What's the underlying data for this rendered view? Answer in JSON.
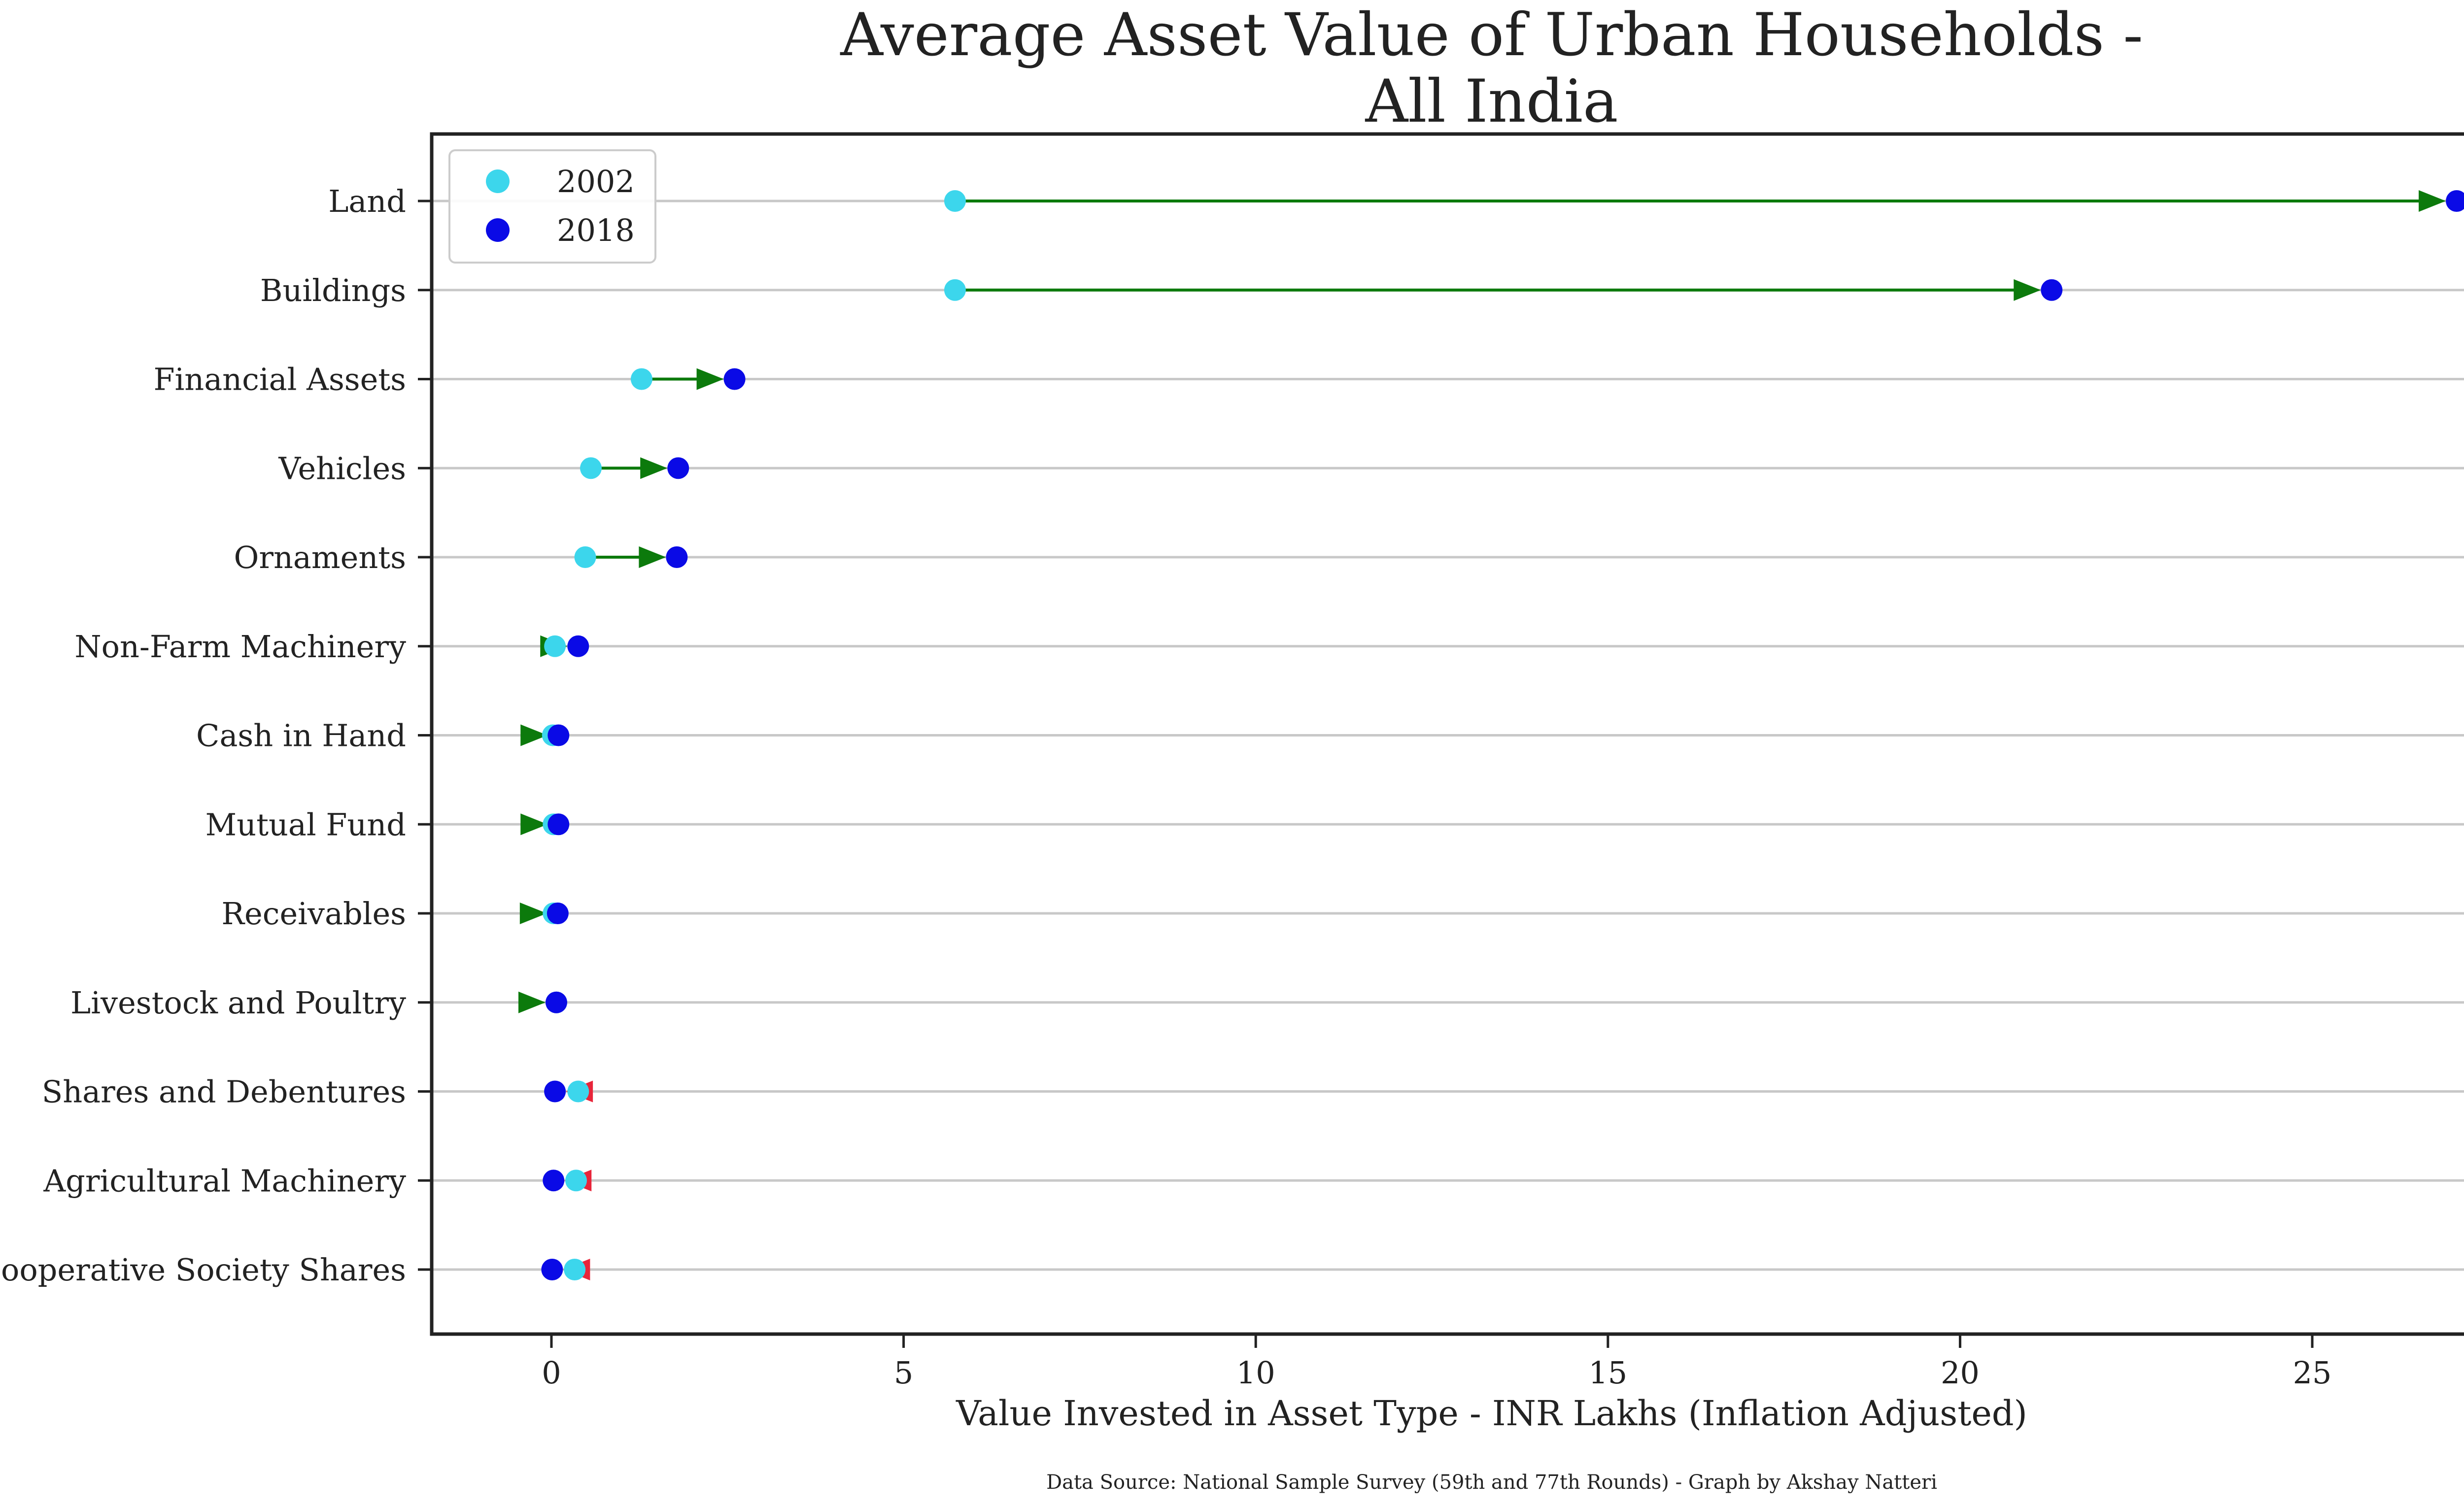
{
  "chart_data": {
    "type": "dumbbell",
    "title_lines": [
      "Average Asset Value of Urban Households -",
      "All India"
    ],
    "xlabel": "Value Invested in Asset Type  - INR Lakhs (Inflation Adjusted)",
    "ylabel": "",
    "source_note": "Data Source:  National Sample Survey (59th and 77th Rounds) - Graph by Akshay Natteri",
    "xlim": [
      -1.7,
      28.4
    ],
    "xticks": [
      0,
      5,
      10,
      15,
      20,
      25
    ],
    "grid": "horizontal",
    "legend_position": "top-left",
    "categories": [
      "Land",
      "Buildings",
      "Financial Assets",
      "Vehicles",
      "Ornaments",
      "Non-Farm Machinery",
      "Cash in Hand",
      "Mutual Fund",
      "Receivables",
      "Livestock and Poultry",
      "Shares and Debentures",
      "Agricultural Machinery",
      "Cooperative Society Shares"
    ],
    "series": [
      {
        "name": "2002",
        "color": "#3cd6ec",
        "values": [
          5.73,
          5.73,
          1.28,
          0.56,
          0.48,
          0.05,
          0.02,
          0.03,
          0.03,
          0.07,
          0.38,
          0.35,
          0.33
        ]
      },
      {
        "name": "2018",
        "color": "#0a0ae6",
        "values": [
          27.05,
          21.3,
          2.6,
          1.8,
          1.78,
          0.38,
          0.1,
          0.1,
          0.09,
          0.07,
          0.05,
          0.03,
          0.01
        ]
      }
    ],
    "increase_color": "#0c7a0c",
    "decrease_color": "#e8253a"
  }
}
